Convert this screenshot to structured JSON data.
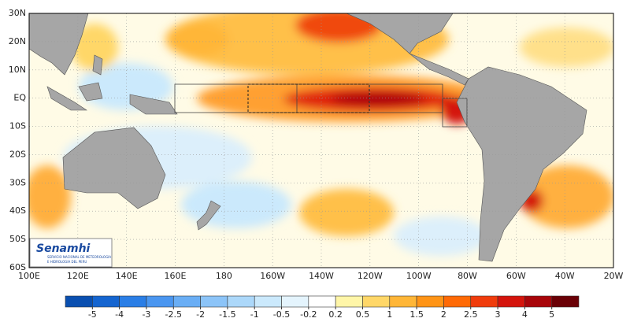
{
  "map": {
    "lat_labels": [
      "30N",
      "20N",
      "10N",
      "EQ",
      "10S",
      "20S",
      "30S",
      "40S",
      "50S",
      "60S"
    ],
    "lon_labels": [
      "100E",
      "120E",
      "140E",
      "160E",
      "180",
      "160W",
      "140W",
      "120W",
      "100W",
      "80W",
      "60W",
      "40W",
      "20W"
    ],
    "logo": {
      "name": "Senamhi",
      "line1": "SERVICIO NACIONAL DE METEOROLOGIA",
      "line2": "E HIDROLOGIA DEL PERU"
    }
  },
  "colorbar": {
    "ticks": [
      -5,
      -4,
      -3,
      -2.5,
      -2,
      -1.5,
      -1,
      -0.5,
      -0.2,
      0.2,
      0.5,
      1,
      1.5,
      2,
      2.5,
      3,
      4,
      5
    ],
    "colors": [
      "#0a4fb0",
      "#1565d0",
      "#2a7ee6",
      "#4a96f0",
      "#6aaef5",
      "#8cc4f8",
      "#acd8fa",
      "#cbe9fc",
      "#e4f4fd",
      "#ffffff",
      "#fff6a8",
      "#ffd768",
      "#ffb637",
      "#ff9416",
      "#ff6a06",
      "#f03c0c",
      "#d4140c",
      "#a8050a",
      "#6a0006"
    ]
  }
}
